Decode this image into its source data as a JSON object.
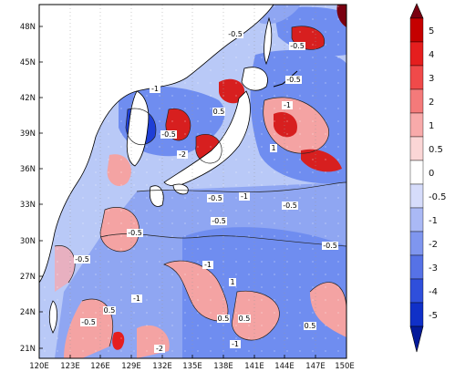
{
  "map": {
    "lat_ticks": [
      "48N",
      "45N",
      "42N",
      "39N",
      "36N",
      "33N",
      "30N",
      "27N",
      "24N",
      "21N"
    ],
    "lon_ticks": [
      "120E",
      "123E",
      "126E",
      "129E",
      "132E",
      "135E",
      "138E",
      "141E",
      "144E",
      "147E",
      "150E"
    ],
    "contour_labels": [
      "-0.5",
      "-1",
      "-0.5",
      "-0.5",
      "-1",
      "0.5",
      "-2",
      "-1",
      "-0.5",
      "-0.5",
      "-0.5",
      "0.5",
      "1",
      "-1",
      "-0.5",
      "-0.5",
      "0.5",
      "-0.5",
      "-1",
      "0.5",
      "0.5",
      "1",
      "-1",
      "-0.5",
      "-0.5",
      "-2"
    ],
    "colors": {
      "ocean_strong_neg": "#1f3fd6",
      "ocean_neg": "#6f8df0",
      "ocean_weak_neg": "#b9c9f7",
      "ocean_pos": "#f4a3a3",
      "ocean_strong_pos": "#d71f1f",
      "land": "#ffffff",
      "frame": "#000000"
    }
  },
  "colorbar": {
    "labels": [
      "5",
      "4",
      "3",
      "2",
      "1",
      "0.5",
      "0",
      "-0.5",
      "-1",
      "-2",
      "-3",
      "-4",
      "-5"
    ],
    "colors": [
      "#7a0010",
      "#c50000",
      "#e51e1e",
      "#f04a4a",
      "#f47a7a",
      "#f8aaaa",
      "#fbd6d6",
      "#d6dcfb",
      "#aab9f5",
      "#7f96ef",
      "#5672e6",
      "#2f4fdb",
      "#1030c8",
      "#041a9a"
    ]
  }
}
